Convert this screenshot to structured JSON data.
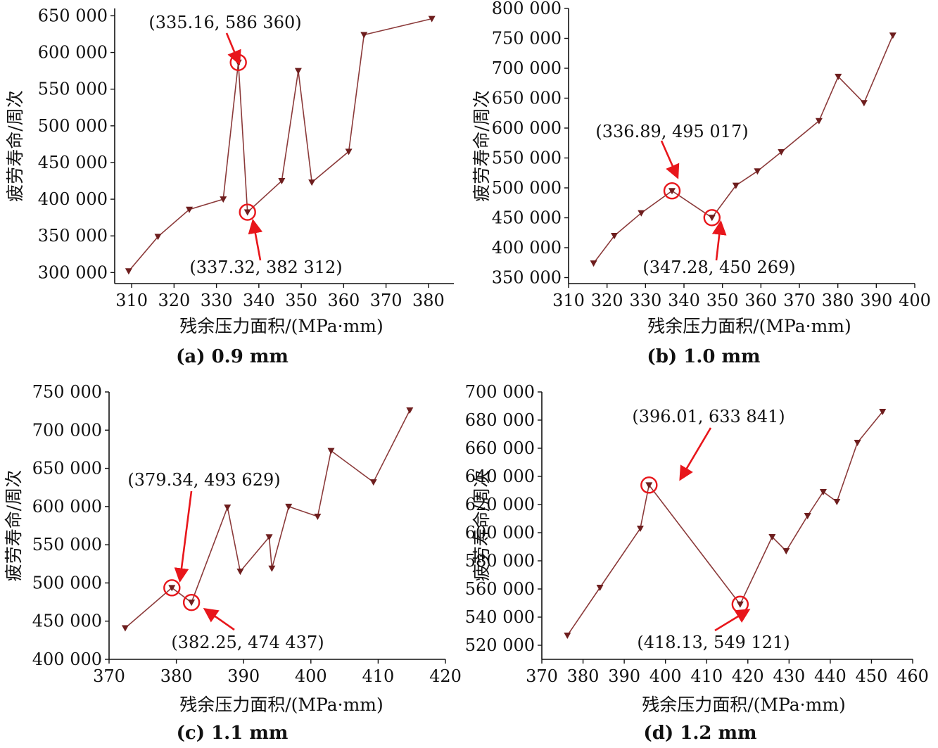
{
  "chart_data": [
    {
      "type": "line",
      "caption": "(a) 0.9 mm",
      "xlabel": "残余压力面积/(MPa·mm)",
      "ylabel": "疲劳寿命/周次",
      "xlim": [
        306,
        386
      ],
      "ylim": [
        285000,
        660000
      ],
      "x_ticks": [
        "310",
        "320",
        "330",
        "340",
        "350",
        "360",
        "370",
        "380"
      ],
      "y_ticks": [
        "300 000",
        "350 000",
        "400 000",
        "450 000",
        "500 000",
        "550 000",
        "600 000",
        "650 000"
      ],
      "series": [
        {
          "marker": "triangle-down",
          "points": [
            [
              309.3,
              302000
            ],
            [
              316.2,
              349000
            ],
            [
              323.6,
              386000
            ],
            [
              331.6,
              400000
            ],
            [
              335.16,
              586360
            ],
            [
              337.32,
              382312
            ],
            [
              345.4,
              425000
            ],
            [
              349.3,
              575000
            ],
            [
              352.5,
              423000
            ],
            [
              361.2,
              465000
            ],
            [
              364.8,
              624000
            ],
            [
              380.8,
              646000
            ]
          ]
        }
      ],
      "annotations": [
        {
          "label": "(335.16, 586 360)",
          "x": 335.16,
          "y": 586360
        },
        {
          "label": "(337.32, 382 312)",
          "x": 337.32,
          "y": 382312
        }
      ]
    },
    {
      "type": "line",
      "caption": "(b) 1.0 mm",
      "xlabel": "残余压力面积/(MPa·mm)",
      "ylabel": "疲劳寿命/周次",
      "xlim": [
        310,
        400
      ],
      "ylim": [
        340000,
        800000
      ],
      "x_ticks": [
        "310",
        "320",
        "330",
        "340",
        "350",
        "360",
        "370",
        "380",
        "390",
        "400"
      ],
      "y_ticks": [
        "350 000",
        "400 000",
        "450 000",
        "500 000",
        "550 000",
        "600 000",
        "650 000",
        "700 000",
        "750 000",
        "800 000"
      ],
      "series": [
        {
          "marker": "triangle-down",
          "points": [
            [
              316.5,
              374000
            ],
            [
              321.9,
              420000
            ],
            [
              328.9,
              458000
            ],
            [
              336.89,
              495017
            ],
            [
              347.28,
              450269
            ],
            [
              353.5,
              504000
            ],
            [
              359.1,
              528000
            ],
            [
              365.3,
              560000
            ],
            [
              375.1,
              612000
            ],
            [
              380.1,
              686000
            ],
            [
              386.8,
              642000
            ],
            [
              394.3,
              755000
            ]
          ]
        }
      ],
      "annotations": [
        {
          "label": "(336.89, 495 017)",
          "x": 336.89,
          "y": 495017
        },
        {
          "label": "(347.28, 450 269)",
          "x": 347.28,
          "y": 450269
        }
      ]
    },
    {
      "type": "line",
      "caption": "(c) 1.1 mm",
      "xlabel": "残余压力面积/(MPa·mm)",
      "ylabel": "疲劳寿命/周次",
      "xlim": [
        370,
        420
      ],
      "ylim": [
        400000,
        750000
      ],
      "x_ticks": [
        "370",
        "380",
        "390",
        "400",
        "410",
        "420"
      ],
      "y_ticks": [
        "400 000",
        "450 000",
        "500 000",
        "550 000",
        "600 000",
        "650 000",
        "700 000",
        "750 000"
      ],
      "series": [
        {
          "marker": "triangle-down",
          "points": [
            [
              372.4,
              441000
            ],
            [
              379.34,
              493629
            ],
            [
              382.25,
              474437
            ],
            [
              387.6,
              599000
            ],
            [
              389.5,
              515000
            ],
            [
              393.8,
              560000
            ],
            [
              394.2,
              519000
            ],
            [
              396.7,
              600000
            ],
            [
              401.0,
              587000
            ],
            [
              403.0,
              673000
            ],
            [
              409.3,
              632000
            ],
            [
              414.7,
              726000
            ]
          ]
        }
      ],
      "annotations": [
        {
          "label": "(379.34, 493 629)",
          "x": 379.34,
          "y": 493629
        },
        {
          "label": "(382.25, 474 437)",
          "x": 382.25,
          "y": 474437
        }
      ]
    },
    {
      "type": "line",
      "caption": "(d) 1.2 mm",
      "xlabel": "残余压力面积/(MPa·mm)",
      "ylabel": "疲劳寿命/周次",
      "xlim": [
        370,
        460
      ],
      "ylim": [
        510000,
        700000
      ],
      "x_ticks": [
        "370",
        "380",
        "390",
        "400",
        "410",
        "420",
        "430",
        "440",
        "450",
        "460"
      ],
      "y_ticks": [
        "520 000",
        "540 000",
        "560 000",
        "580 000",
        "600 000",
        "620 000",
        "640 000",
        "660 000",
        "680 000",
        "700 000"
      ],
      "series": [
        {
          "marker": "triangle-down",
          "points": [
            [
              376.2,
              527000
            ],
            [
              384.1,
              561000
            ],
            [
              393.9,
              603000
            ],
            [
              396.01,
              633841
            ],
            [
              418.13,
              549121
            ],
            [
              425.9,
              597000
            ],
            [
              429.3,
              587000
            ],
            [
              434.5,
              612000
            ],
            [
              438.3,
              629000
            ],
            [
              441.6,
              622000
            ],
            [
              446.6,
              664000
            ],
            [
              452.7,
              686000
            ]
          ]
        }
      ],
      "annotations": [
        {
          "label": "(396.01, 633 841)",
          "x": 396.01,
          "y": 633841
        },
        {
          "label": "(418.13, 549 121)",
          "x": 418.13,
          "y": 549121
        }
      ]
    }
  ],
  "colors": {
    "line": "#8b3a3a",
    "marker": "#6e1e1e",
    "annotation": "#e8161b",
    "axis": "#111111"
  }
}
